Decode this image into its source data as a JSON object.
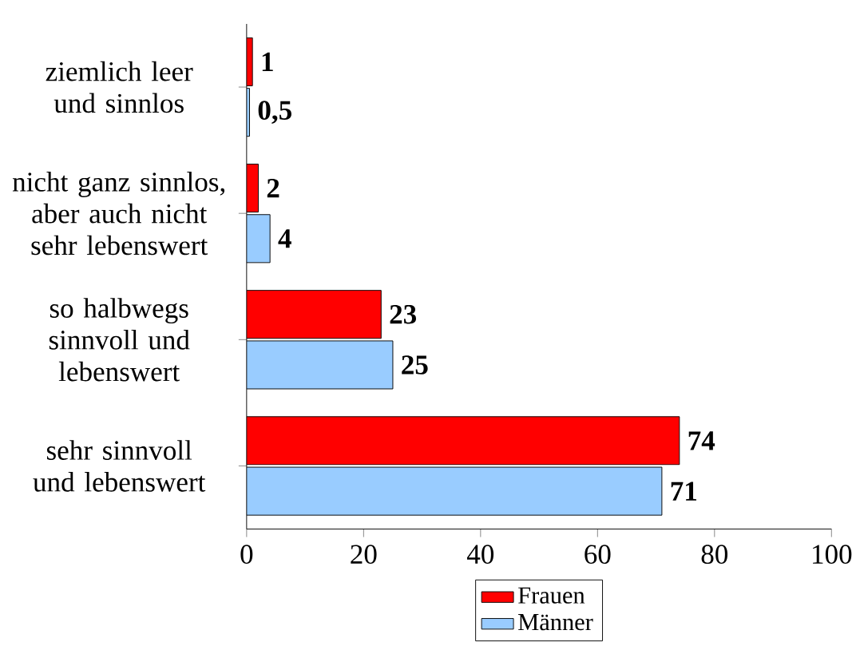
{
  "chart_data": {
    "type": "bar",
    "orientation": "horizontal",
    "categories": [
      "ziemlich leer und sinnlos",
      "nicht ganz sinnlos, aber auch nicht sehr lebenswert",
      "so halbwegs sinnvoll und lebenswert",
      "sehr sinnvoll und lebenswert"
    ],
    "series": [
      {
        "name": "Frauen",
        "color": "#ff0000",
        "values": [
          1,
          2,
          23,
          74
        ],
        "value_labels": [
          "1",
          "2",
          "23",
          "74"
        ]
      },
      {
        "name": "Männer",
        "color": "#99ccff",
        "values": [
          0.5,
          4,
          25,
          71
        ],
        "value_labels": [
          "0,5",
          "4",
          "25",
          "71"
        ]
      }
    ],
    "xlim": [
      0,
      100
    ],
    "xticks": [
      0,
      20,
      40,
      60,
      80,
      100
    ],
    "grid": false,
    "legend": "bottom"
  }
}
